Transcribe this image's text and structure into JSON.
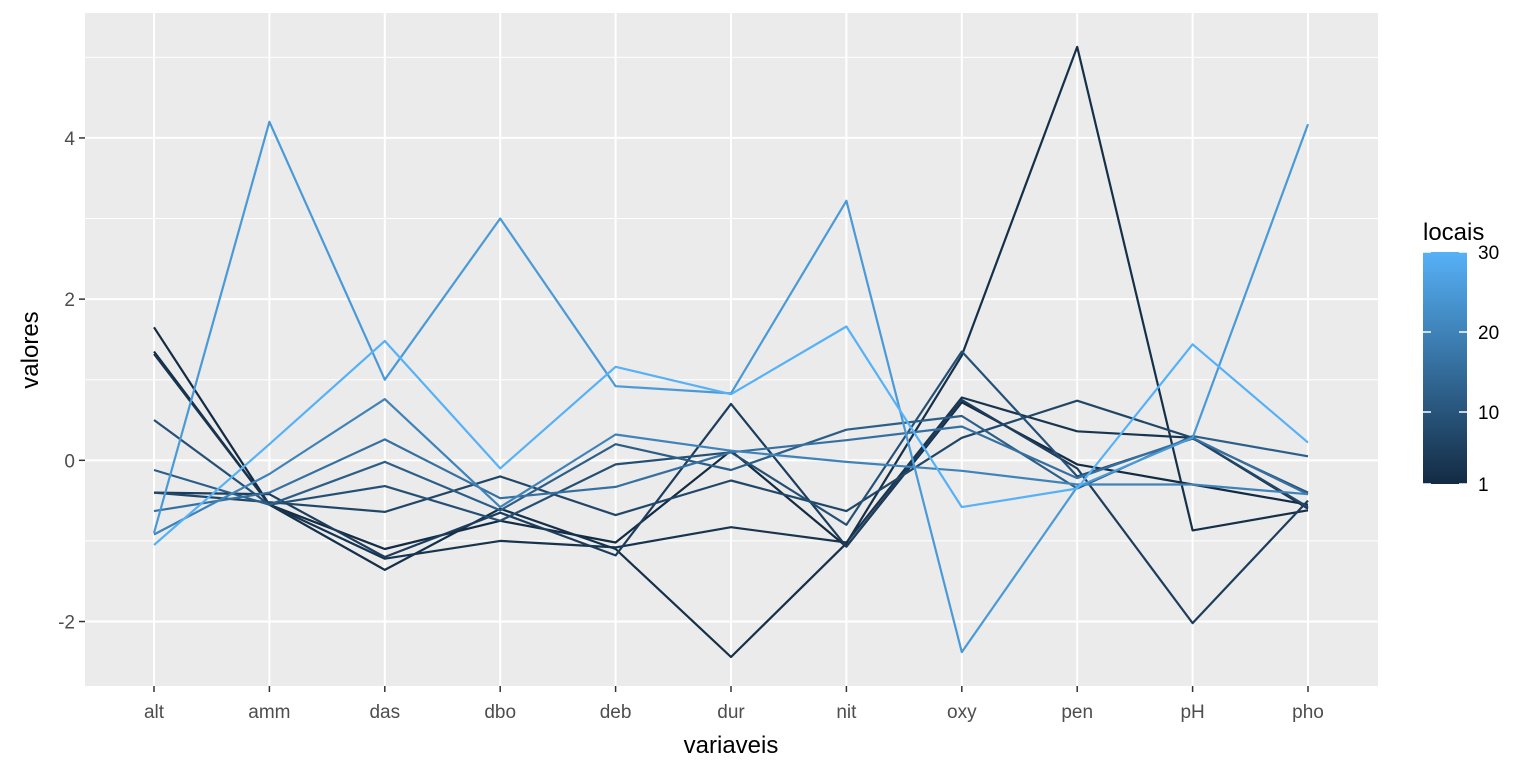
{
  "chart_data": {
    "type": "line",
    "chart_kind": "parallel-coordinates",
    "xlabel": "variaveis",
    "ylabel": "valores",
    "categories": [
      "alt",
      "amm",
      "das",
      "dbo",
      "deb",
      "dur",
      "nit",
      "oxy",
      "pen",
      "pH",
      "pho"
    ],
    "y_ticks": [
      "-2",
      "0",
      "2",
      "4"
    ],
    "y_tick_values": [
      -2,
      0,
      2,
      4
    ],
    "ylim": [
      -2.8,
      5.55
    ],
    "grid": true,
    "legend": {
      "title": "locais",
      "type": "colorbar",
      "placement": "right",
      "range": [
        1,
        30
      ],
      "tick_labels": [
        "1",
        "10",
        "20",
        "30"
      ],
      "tick_values": [
        1,
        10,
        20,
        30
      ],
      "color_low": "#132b43",
      "color_high": "#56b1f7"
    },
    "series": [
      {
        "locais": 1,
        "values": [
          1.65,
          -0.55,
          -1.1,
          -0.75,
          -1.02,
          0.12,
          -1.07,
          0.72,
          -0.05,
          -0.3,
          -0.55
        ]
      },
      {
        "locais": 2,
        "values": [
          1.35,
          -0.55,
          -1.36,
          -0.6,
          -1.1,
          -2.44,
          -1.03,
          1.3,
          5.13,
          -0.87,
          -0.62
        ]
      },
      {
        "locais": 3,
        "values": [
          1.32,
          -0.55,
          -1.22,
          -1.0,
          -1.08,
          -0.83,
          -1.02,
          0.78,
          0.36,
          0.28,
          -0.6
        ]
      },
      {
        "locais": 5,
        "values": [
          -0.4,
          -0.42,
          -1.2,
          -0.65,
          -1.18,
          0.7,
          -1.07,
          0.75,
          -0.1,
          -2.02,
          -0.5
        ]
      },
      {
        "locais": 7,
        "values": [
          -0.4,
          -0.52,
          -0.64,
          -0.2,
          -0.68,
          -0.25,
          -0.63,
          0.28,
          0.74,
          0.28,
          -0.58
        ]
      },
      {
        "locais": 9,
        "values": [
          0.5,
          -0.55,
          -0.32,
          -0.75,
          -0.05,
          0.1,
          -0.8,
          1.35,
          -0.2,
          0.27,
          -0.4
        ]
      },
      {
        "locais": 12,
        "values": [
          -0.12,
          -0.55,
          -0.02,
          -0.62,
          0.2,
          -0.12,
          0.38,
          0.55,
          -0.35,
          0.3,
          0.05
        ]
      },
      {
        "locais": 16,
        "values": [
          -0.63,
          -0.4,
          0.26,
          -0.47,
          -0.33,
          0.1,
          0.25,
          0.42,
          -0.22,
          0.28,
          -0.42
        ]
      },
      {
        "locais": 20,
        "values": [
          -0.92,
          -0.17,
          0.76,
          -0.58,
          0.32,
          0.12,
          -0.02,
          -0.13,
          -0.3,
          -0.3,
          -0.42
        ]
      },
      {
        "locais": 25,
        "values": [
          -0.9,
          4.2,
          1.0,
          3.0,
          0.92,
          0.83,
          3.22,
          -2.38,
          -0.33,
          0.28,
          4.17
        ]
      },
      {
        "locais": 30,
        "values": [
          -1.05,
          0.2,
          1.48,
          -0.1,
          1.16,
          0.82,
          1.66,
          -0.58,
          -0.35,
          1.44,
          0.22
        ]
      }
    ]
  }
}
